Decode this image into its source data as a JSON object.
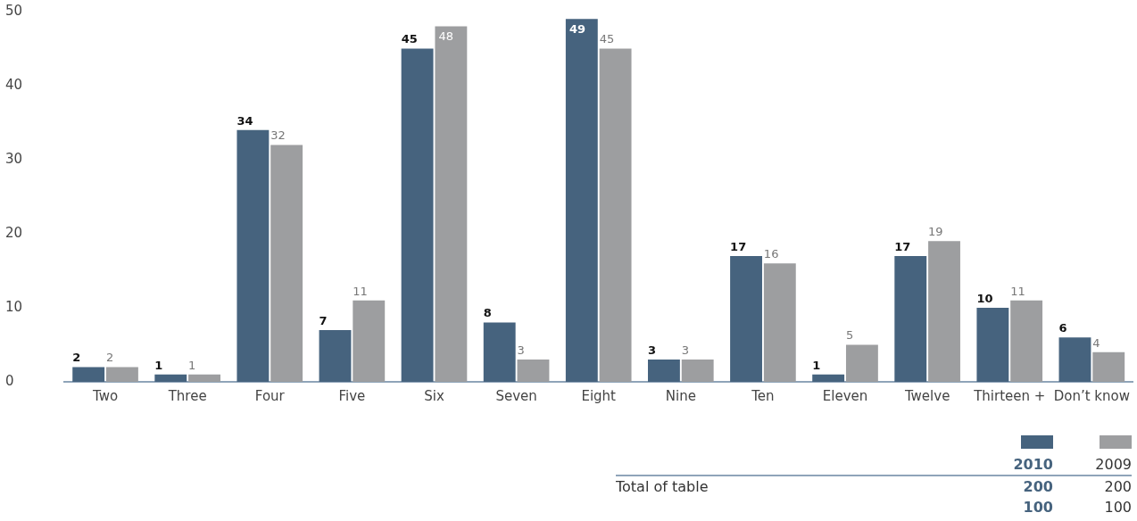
{
  "chart_data": {
    "type": "bar",
    "categories": [
      "Two",
      "Three",
      "Four",
      "Five",
      "Six",
      "Seven",
      "Eight",
      "Nine",
      "Ten",
      "Eleven",
      "Twelve",
      "Thirteen +",
      "Don’t know"
    ],
    "series": [
      {
        "name": "2010",
        "color": "#46637e",
        "values": [
          2,
          1,
          34,
          7,
          45,
          8,
          49,
          3,
          17,
          1,
          17,
          10,
          6
        ]
      },
      {
        "name": "2009",
        "color": "#9d9ea0",
        "values": [
          2,
          1,
          32,
          11,
          48,
          3,
          45,
          3,
          16,
          5,
          19,
          11,
          4
        ]
      }
    ],
    "ylim": [
      0,
      50
    ],
    "yticks": [
      0,
      10,
      20,
      30,
      40,
      50
    ],
    "data_labels": true,
    "legend": "bottom right",
    "annotations": [
      "Total of table",
      "200",
      "200",
      "100",
      "100"
    ]
  }
}
